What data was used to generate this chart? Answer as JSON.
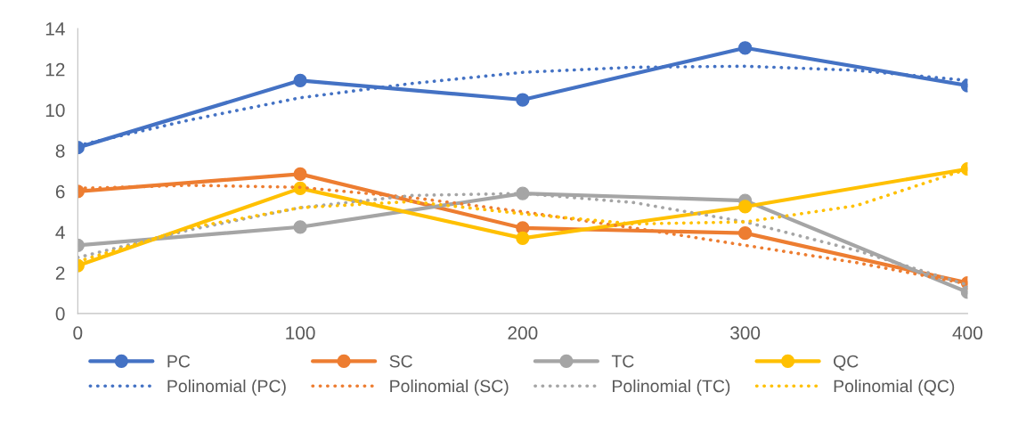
{
  "chart_data": {
    "type": "line",
    "xlim": [
      0,
      400
    ],
    "xticks": [
      0,
      100,
      200,
      300,
      400
    ],
    "ylim": [
      0,
      14
    ],
    "yticks": [
      0,
      2,
      4,
      6,
      8,
      10,
      12,
      14
    ],
    "grid": false,
    "legend": "bottom",
    "series": [
      {
        "name": "PC",
        "color": "#4472c4",
        "marker": "circle",
        "line_style": "solid",
        "x": [
          0,
          100,
          200,
          300,
          400
        ],
        "values": [
          8.15,
          11.45,
          10.5,
          13.05,
          11.2
        ]
      },
      {
        "name": "SC",
        "color": "#ed7d31",
        "marker": "circle",
        "line_style": "solid",
        "x": [
          0,
          100,
          200,
          300,
          400
        ],
        "values": [
          6.0,
          6.85,
          4.2,
          3.95,
          1.5
        ]
      },
      {
        "name": "TC",
        "color": "#a5a5a5",
        "marker": "circle",
        "line_style": "solid",
        "x": [
          0,
          100,
          200,
          300,
          400
        ],
        "values": [
          3.35,
          4.25,
          5.9,
          5.55,
          1.05
        ]
      },
      {
        "name": "QC",
        "color": "#ffc000",
        "marker": "circle",
        "line_style": "solid",
        "x": [
          0,
          100,
          200,
          300,
          400
        ],
        "values": [
          2.35,
          6.15,
          3.7,
          5.25,
          7.1
        ]
      },
      {
        "name": "Polinomial (PC)",
        "color": "#4472c4",
        "marker": "none",
        "line_style": "dotted",
        "x": [
          0,
          50,
          100,
          150,
          200,
          250,
          300,
          350,
          400
        ],
        "values": [
          8.25,
          9.5,
          10.6,
          11.3,
          11.85,
          12.1,
          12.15,
          11.95,
          11.45
        ]
      },
      {
        "name": "Polinomial (SC)",
        "color": "#ed7d31",
        "marker": "none",
        "line_style": "dotted",
        "x": [
          0,
          50,
          100,
          150,
          200,
          250,
          300,
          350,
          400
        ],
        "values": [
          6.15,
          6.3,
          6.2,
          5.7,
          5.0,
          4.2,
          3.35,
          2.5,
          1.45
        ]
      },
      {
        "name": "Polinomial (TC)",
        "color": "#a5a5a5",
        "marker": "none",
        "line_style": "dotted",
        "x": [
          0,
          50,
          100,
          150,
          200,
          250,
          300,
          350,
          400
        ],
        "values": [
          2.75,
          4.1,
          5.2,
          5.8,
          5.9,
          5.45,
          4.5,
          3.1,
          1.4
        ]
      },
      {
        "name": "Polinomial (QC)",
        "color": "#ffc000",
        "marker": "none",
        "line_style": "dotted",
        "x": [
          0,
          50,
          100,
          150,
          200,
          250,
          300,
          350,
          400
        ],
        "values": [
          2.55,
          4.2,
          5.2,
          5.5,
          4.9,
          4.4,
          4.5,
          5.3,
          7.1
        ]
      }
    ]
  }
}
